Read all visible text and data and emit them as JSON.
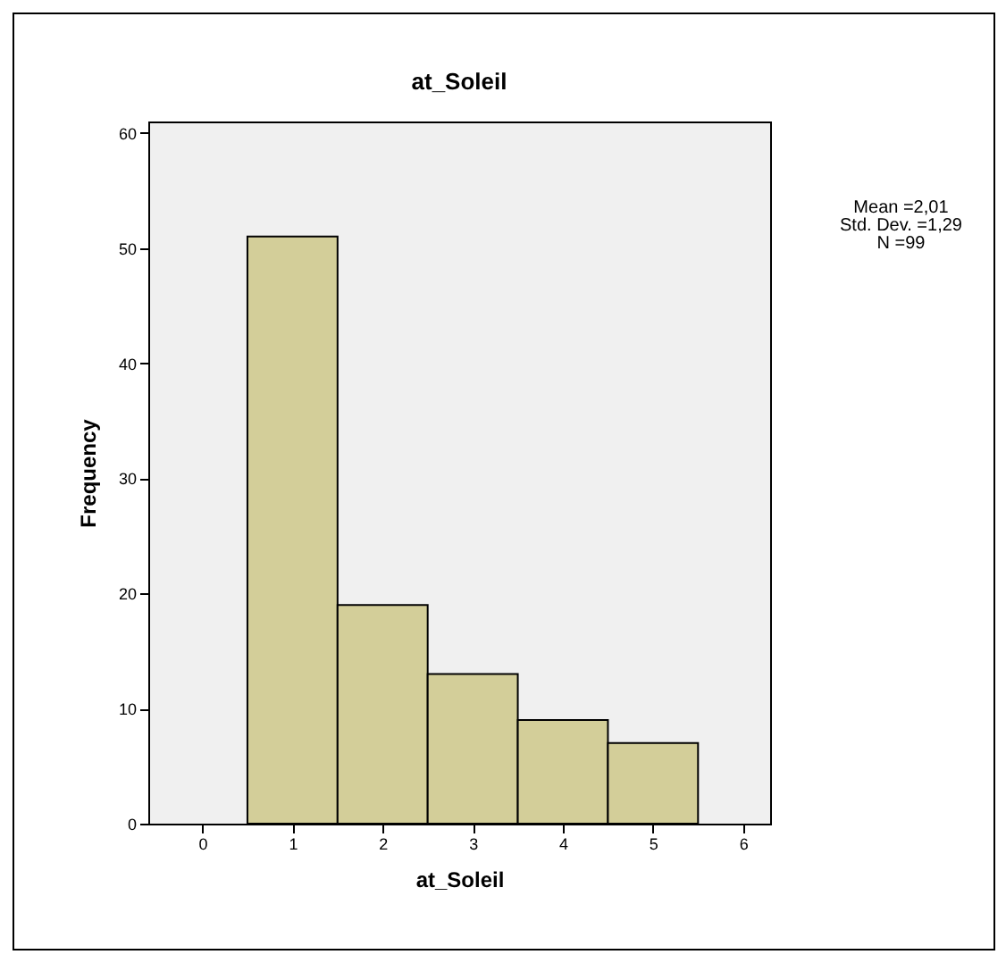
{
  "chart_data": {
    "type": "histogram",
    "title": "at_Soleil",
    "xlabel": "at_Soleil",
    "ylabel": "Frequency",
    "bins": [
      0.5,
      1.5,
      2.5,
      3.5,
      4.5,
      5.5
    ],
    "values": [
      51,
      19,
      13,
      9,
      7
    ],
    "color": "#d3ce99",
    "xlim": [
      -0.6,
      6.3
    ],
    "xticks": [
      0,
      1,
      2,
      3,
      4,
      5,
      6
    ],
    "ylim": [
      0,
      61
    ],
    "yticks": [
      0,
      10,
      20,
      30,
      40,
      50,
      60
    ],
    "annotations": [
      "Mean =2,01",
      "Std. Dev. =1,29",
      "N =99"
    ]
  }
}
